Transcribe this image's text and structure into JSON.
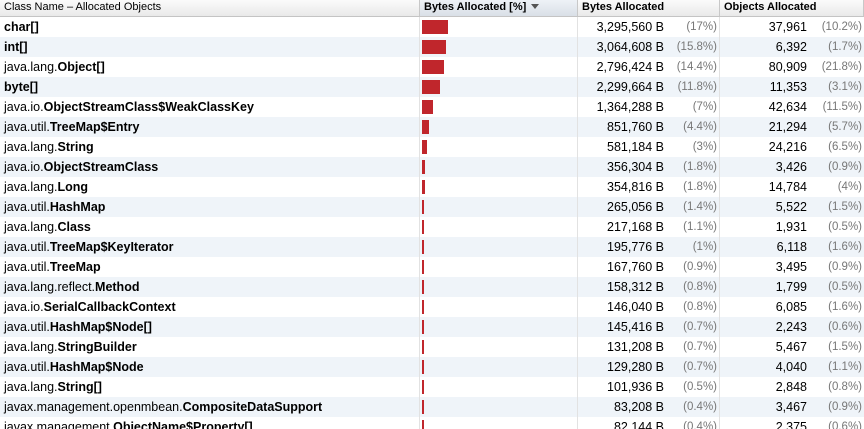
{
  "columns": {
    "class_name": "Class Name – Allocated Objects",
    "bytes_pct": "Bytes Allocated [%]",
    "bytes": "Bytes Allocated",
    "objects": "Objects Allocated"
  },
  "sort_column": "Bytes Allocated [%]",
  "bar_color": "#c0262c",
  "rows": [
    {
      "pkg": "",
      "cls": "char[]",
      "bytes": "3,295,560 B",
      "bytes_pct": "(17%)",
      "bytes_share": 17,
      "objects": "37,961",
      "objects_pct": "(10.2%)"
    },
    {
      "pkg": "",
      "cls": "int[]",
      "bytes": "3,064,608 B",
      "bytes_pct": "(15.8%)",
      "bytes_share": 15.8,
      "objects": "6,392",
      "objects_pct": "(1.7%)"
    },
    {
      "pkg": "java.lang.",
      "cls": "Object[]",
      "bytes": "2,796,424 B",
      "bytes_pct": "(14.4%)",
      "bytes_share": 14.4,
      "objects": "80,909",
      "objects_pct": "(21.8%)"
    },
    {
      "pkg": "",
      "cls": "byte[]",
      "bytes": "2,299,664 B",
      "bytes_pct": "(11.8%)",
      "bytes_share": 11.8,
      "objects": "11,353",
      "objects_pct": "(3.1%)"
    },
    {
      "pkg": "java.io.",
      "cls": "ObjectStreamClass$WeakClassKey",
      "bytes": "1,364,288 B",
      "bytes_pct": "(7%)",
      "bytes_share": 7,
      "objects": "42,634",
      "objects_pct": "(11.5%)"
    },
    {
      "pkg": "java.util.",
      "cls": "TreeMap$Entry",
      "bytes": "851,760 B",
      "bytes_pct": "(4.4%)",
      "bytes_share": 4.4,
      "objects": "21,294",
      "objects_pct": "(5.7%)"
    },
    {
      "pkg": "java.lang.",
      "cls": "String",
      "bytes": "581,184 B",
      "bytes_pct": "(3%)",
      "bytes_share": 3,
      "objects": "24,216",
      "objects_pct": "(6.5%)"
    },
    {
      "pkg": "java.io.",
      "cls": "ObjectStreamClass",
      "bytes": "356,304 B",
      "bytes_pct": "(1.8%)",
      "bytes_share": 1.8,
      "objects": "3,426",
      "objects_pct": "(0.9%)"
    },
    {
      "pkg": "java.lang.",
      "cls": "Long",
      "bytes": "354,816 B",
      "bytes_pct": "(1.8%)",
      "bytes_share": 1.8,
      "objects": "14,784",
      "objects_pct": "(4%)"
    },
    {
      "pkg": "java.util.",
      "cls": "HashMap",
      "bytes": "265,056 B",
      "bytes_pct": "(1.4%)",
      "bytes_share": 1.4,
      "objects": "5,522",
      "objects_pct": "(1.5%)"
    },
    {
      "pkg": "java.lang.",
      "cls": "Class",
      "bytes": "217,168 B",
      "bytes_pct": "(1.1%)",
      "bytes_share": 1.1,
      "objects": "1,931",
      "objects_pct": "(0.5%)"
    },
    {
      "pkg": "java.util.",
      "cls": "TreeMap$KeyIterator",
      "bytes": "195,776 B",
      "bytes_pct": "(1%)",
      "bytes_share": 1,
      "objects": "6,118",
      "objects_pct": "(1.6%)"
    },
    {
      "pkg": "java.util.",
      "cls": "TreeMap",
      "bytes": "167,760 B",
      "bytes_pct": "(0.9%)",
      "bytes_share": 0.9,
      "objects": "3,495",
      "objects_pct": "(0.9%)"
    },
    {
      "pkg": "java.lang.reflect.",
      "cls": "Method",
      "bytes": "158,312 B",
      "bytes_pct": "(0.8%)",
      "bytes_share": 0.8,
      "objects": "1,799",
      "objects_pct": "(0.5%)"
    },
    {
      "pkg": "java.io.",
      "cls": "SerialCallbackContext",
      "bytes": "146,040 B",
      "bytes_pct": "(0.8%)",
      "bytes_share": 0.8,
      "objects": "6,085",
      "objects_pct": "(1.6%)"
    },
    {
      "pkg": "java.util.",
      "cls": "HashMap$Node[]",
      "bytes": "145,416 B",
      "bytes_pct": "(0.7%)",
      "bytes_share": 0.7,
      "objects": "2,243",
      "objects_pct": "(0.6%)"
    },
    {
      "pkg": "java.lang.",
      "cls": "StringBuilder",
      "bytes": "131,208 B",
      "bytes_pct": "(0.7%)",
      "bytes_share": 0.7,
      "objects": "5,467",
      "objects_pct": "(1.5%)"
    },
    {
      "pkg": "java.util.",
      "cls": "HashMap$Node",
      "bytes": "129,280 B",
      "bytes_pct": "(0.7%)",
      "bytes_share": 0.7,
      "objects": "4,040",
      "objects_pct": "(1.1%)"
    },
    {
      "pkg": "java.lang.",
      "cls": "String[]",
      "bytes": "101,936 B",
      "bytes_pct": "(0.5%)",
      "bytes_share": 0.5,
      "objects": "2,848",
      "objects_pct": "(0.8%)"
    },
    {
      "pkg": "javax.management.openmbean.",
      "cls": "CompositeDataSupport",
      "bytes": "83,208 B",
      "bytes_pct": "(0.4%)",
      "bytes_share": 0.4,
      "objects": "3,467",
      "objects_pct": "(0.9%)"
    },
    {
      "pkg": "javax.management.",
      "cls": "ObjectName$Property[]",
      "bytes": "82,144 B",
      "bytes_pct": "(0.4%)",
      "bytes_share": 0.4,
      "objects": "2,375",
      "objects_pct": "(0.6%)"
    }
  ]
}
